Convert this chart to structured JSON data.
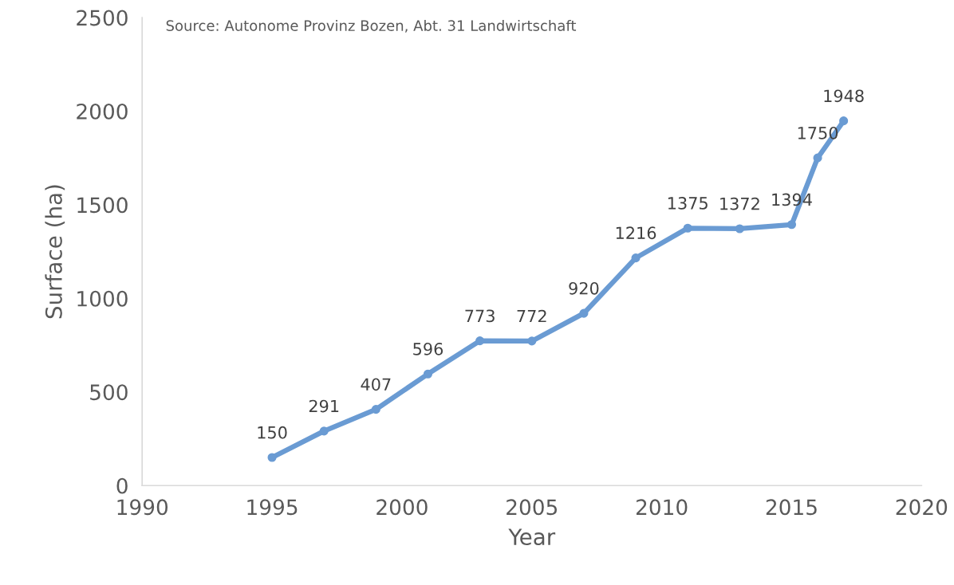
{
  "chart_data": {
    "type": "line",
    "xlabel": "Year",
    "ylabel": "Surface (ha)",
    "x": [
      1995,
      1997,
      1999,
      2001,
      2003,
      2005,
      2007,
      2009,
      2011,
      2013,
      2015,
      2016,
      2017
    ],
    "series": [
      {
        "color": "#6a9bd3",
        "values": [
          150,
          291,
          407,
          596,
          773,
          772,
          920,
          1216,
          1375,
          1372,
          1394,
          1750,
          1948
        ]
      }
    ],
    "xlim": [
      1990,
      2020
    ],
    "xticks": [
      1990,
      1995,
      2000,
      2005,
      2010,
      2015,
      2020
    ],
    "ylim": [
      0,
      2500
    ],
    "yticks": [
      0,
      500,
      1000,
      1500,
      2000,
      2500
    ],
    "data_labels": true,
    "marker": "circle",
    "line_style": "solid",
    "grid": false,
    "legend": false,
    "annotations": [
      "Source: Autonome Provinz Bozen, Abt. 31 Landwirtschaft"
    ]
  }
}
